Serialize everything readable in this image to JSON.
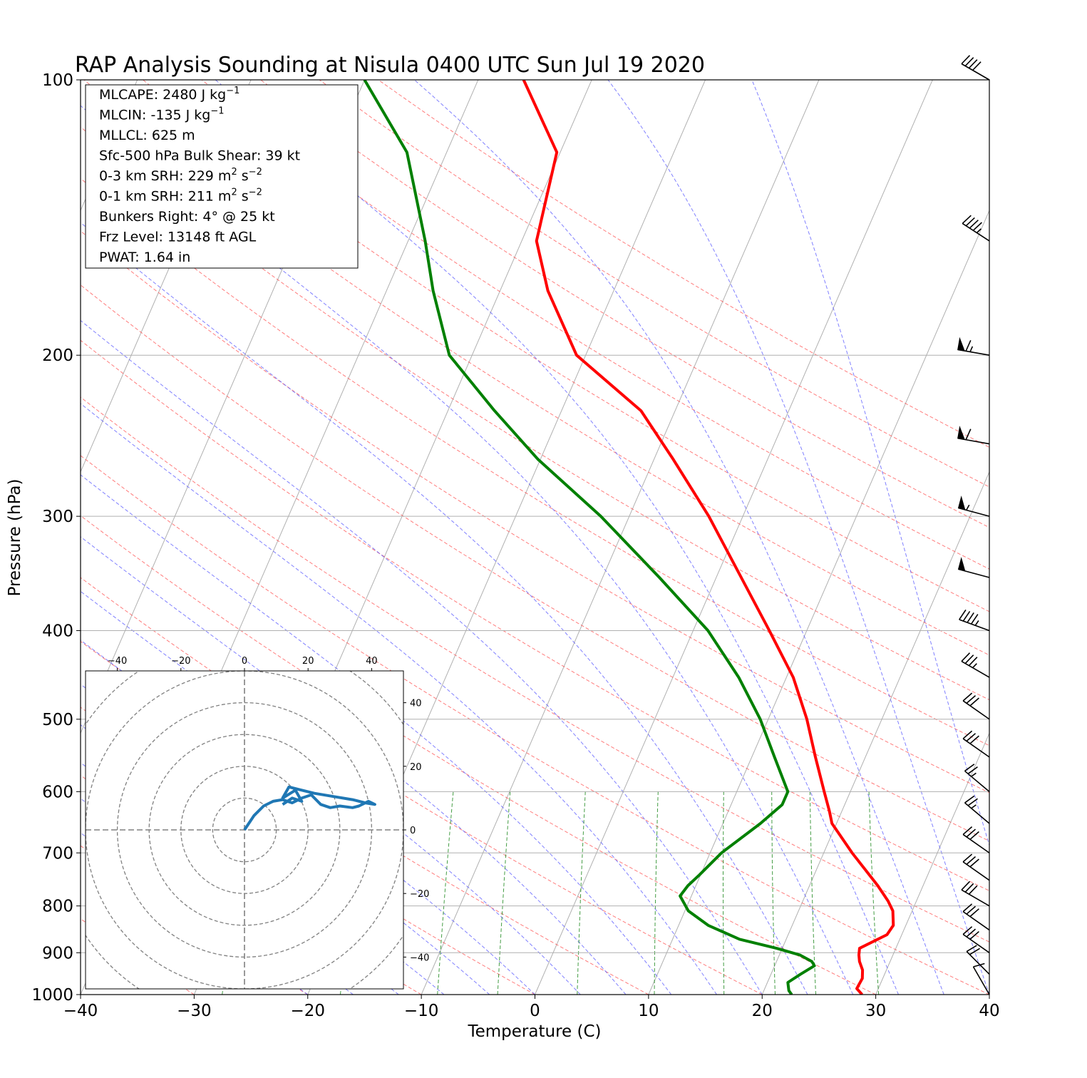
{
  "chart_data": {
    "type": "line",
    "title": "RAP Analysis Sounding at Nisula 0400 UTC Sun Jul 19 2020",
    "xlabel": "Temperature (C)",
    "ylabel": "Pressure (hPa)",
    "xlim": [
      -40,
      40
    ],
    "ylim": [
      1000,
      100
    ],
    "y_scale": "log",
    "skew_per_decade_C": 35,
    "x_ticks": [
      -40,
      -30,
      -20,
      -10,
      0,
      10,
      20,
      30,
      40
    ],
    "x_tick_labels": [
      "−40",
      "−30",
      "−20",
      "−10",
      "0",
      "10",
      "20",
      "30",
      "40"
    ],
    "y_ticks": [
      1000,
      900,
      800,
      700,
      600,
      500,
      400,
      300,
      200,
      100
    ],
    "y_tick_labels": [
      "1000",
      "900",
      "800",
      "700",
      "600",
      "500",
      "400",
      "300",
      "200",
      "100"
    ],
    "series": [
      {
        "color": "#ff0000",
        "p": [
          1000,
          985,
          960,
          940,
          920,
          905,
          890,
          860,
          840,
          810,
          790,
          760,
          700,
          650,
          630,
          600,
          550,
          500,
          450,
          400,
          350,
          300,
          260,
          230,
          200,
          170,
          150,
          120,
          100
        ],
        "t": [
          28.8,
          28.1,
          28.2,
          27.9,
          27.3,
          27.0,
          26.8,
          28.7,
          28.9,
          28.3,
          27.5,
          26.0,
          22.5,
          19.6,
          18.9,
          17.7,
          15.6,
          13.4,
          10.6,
          6.7,
          2.2,
          -3.0,
          -8.3,
          -13.0,
          -20.8,
          -25.8,
          -28.7,
          -30.3,
          -36.0
        ]
      },
      {
        "color": "#008000",
        "p": [
          1000,
          990,
          970,
          950,
          930,
          920,
          905,
          890,
          870,
          840,
          810,
          780,
          760,
          740,
          700,
          650,
          620,
          600,
          550,
          500,
          450,
          400,
          350,
          300,
          260,
          230,
          200,
          170,
          150,
          120,
          100
        ],
        "t": [
          22.6,
          22.2,
          21.8,
          22.6,
          23.5,
          23.1,
          21.8,
          19.5,
          15.9,
          12.6,
          10.3,
          9.0,
          9.3,
          9.9,
          11.0,
          13.3,
          14.5,
          14.5,
          12.0,
          9.3,
          5.8,
          1.3,
          -5.0,
          -12.5,
          -20.2,
          -25.9,
          -32.0,
          -35.9,
          -38.5,
          -43.5,
          -50.0
        ]
      }
    ],
    "info_box": [
      {
        "label": "MLCAPE: 2480 J kg",
        "sup": "−1"
      },
      {
        "label": "MLCIN: -135 J kg",
        "sup": "−1"
      },
      {
        "label": "MLLCL: 625 m",
        "sup": ""
      },
      {
        "label": "Sfc-500 hPa Bulk Shear: 39 kt",
        "sup": ""
      },
      {
        "label": "0-3 km SRH: 229 m",
        "sup": "2",
        "label2": " s",
        "sup2": "−2"
      },
      {
        "label": "0-1 km SRH: 211 m",
        "sup": "2",
        "label2": " s",
        "sup2": "−2"
      },
      {
        "label": "Bunkers Right: 4° @ 25 kt",
        "sup": ""
      },
      {
        "label": "Frz Level: 13148 ft AGL",
        "sup": ""
      },
      {
        "label": "PWAT: 1.64 in",
        "sup": ""
      }
    ],
    "wind_barbs": [
      {
        "p": 100,
        "speed_kt": 40,
        "direction_deg": 300
      },
      {
        "p": 150,
        "speed_kt": 45,
        "direction_deg": 303
      },
      {
        "p": 200,
        "speed_kt": 65,
        "direction_deg": 280
      },
      {
        "p": 250,
        "speed_kt": 60,
        "direction_deg": 280
      },
      {
        "p": 300,
        "speed_kt": 55,
        "direction_deg": 285
      },
      {
        "p": 350,
        "speed_kt": 50,
        "direction_deg": 285
      },
      {
        "p": 400,
        "speed_kt": 45,
        "direction_deg": 290
      },
      {
        "p": 450,
        "speed_kt": 35,
        "direction_deg": 300
      },
      {
        "p": 500,
        "speed_kt": 30,
        "direction_deg": 305
      },
      {
        "p": 550,
        "speed_kt": 30,
        "direction_deg": 305
      },
      {
        "p": 600,
        "speed_kt": 25,
        "direction_deg": 310
      },
      {
        "p": 650,
        "speed_kt": 25,
        "direction_deg": 310
      },
      {
        "p": 700,
        "speed_kt": 30,
        "direction_deg": 305
      },
      {
        "p": 750,
        "speed_kt": 30,
        "direction_deg": 305
      },
      {
        "p": 800,
        "speed_kt": 30,
        "direction_deg": 300
      },
      {
        "p": 850,
        "speed_kt": 30,
        "direction_deg": 305
      },
      {
        "p": 900,
        "speed_kt": 30,
        "direction_deg": 305
      },
      {
        "p": 950,
        "speed_kt": 20,
        "direction_deg": 315
      },
      {
        "p": 1000,
        "speed_kt": 10,
        "direction_deg": 330
      }
    ],
    "hodograph": {
      "xlim": [
        -50,
        50
      ],
      "ylim": [
        -50,
        50
      ],
      "rings": [
        10,
        20,
        30,
        40,
        50,
        60
      ],
      "x_ticks": [
        -40,
        -20,
        0,
        20,
        40
      ],
      "x_tick_labels": [
        "−40",
        "−20",
        "0",
        "20",
        "40"
      ],
      "y_ticks": [
        40,
        20,
        0,
        -20,
        -40
      ],
      "y_tick_labels": [
        "40",
        "20",
        "0",
        "−20",
        "−40"
      ],
      "color": "#1f77b4",
      "u": [
        0,
        3,
        6,
        9,
        12,
        15,
        18,
        21,
        24,
        27,
        30,
        34,
        36,
        39,
        41,
        38,
        34,
        28,
        22,
        18,
        14,
        12,
        16,
        18,
        15,
        12
      ],
      "v": [
        0,
        4.5,
        7.5,
        9,
        9.5,
        8.5,
        10,
        11,
        8,
        7,
        7.5,
        7,
        7.5,
        9,
        8,
        8.5,
        9.5,
        10.5,
        11.5,
        12.5,
        13.5,
        10,
        12.5,
        9,
        10,
        8
      ]
    }
  }
}
